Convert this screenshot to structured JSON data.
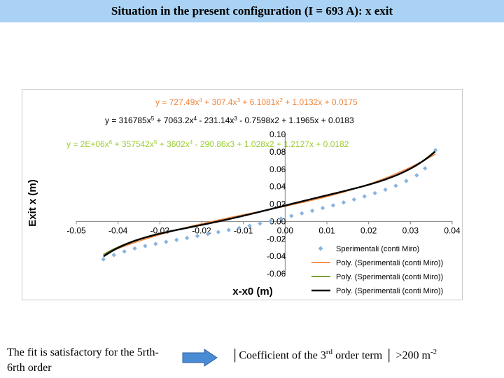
{
  "slide": {
    "title": "Situation in the present configuration (I = 693 A): x exit",
    "note_left": "The fit is satisfactory for the 5rth-6rth order",
    "note_right_pre": "│Coefficient of the 3",
    "note_right_sup": "rd",
    "note_right_mid": " order term │ >200 m",
    "note_right_sup2": "-2"
  },
  "chart_data": {
    "type": "scatter",
    "xlabel": "x-x0 (m)",
    "ylabel": "Exit x (m)",
    "xlim": [
      -0.05,
      0.04
    ],
    "ylim": [
      -0.06,
      0.1
    ],
    "xticks": [
      "-0.05",
      "-0.04",
      "-0.03",
      "-0.02",
      "-0.01",
      "0.00",
      "0.01",
      "0.02",
      "0.03",
      "0.04"
    ],
    "yticks": [
      "-0.06",
      "-0.04",
      "-0.02",
      "0.00",
      "0.02",
      "0.04",
      "0.06",
      "0.08",
      "0.10"
    ],
    "grid": false,
    "legend_position": "bottom-right",
    "equations": [
      {
        "prefix": "y = 727.49x",
        "sup1": "4",
        "mid1": " + 307.4x",
        "sup2": "3",
        "mid2": " + 6.1081x",
        "sup3": "2",
        "rest": " + 1.0132x + 0.0175",
        "color": "#f2863c"
      },
      {
        "prefix": "y = 316785x",
        "sup1": "5",
        "mid1": " + 7063.2x",
        "sup2": "4",
        "mid2": " - 231.14x",
        "sup3": "3",
        "rest": " - 0.7598x2 + 1.1965x + 0.0183",
        "color": "#000000"
      },
      {
        "prefix": "y = 2E+06x",
        "sup1": "6",
        "mid1": " + 357542x",
        "sup2": "5",
        "mid2": " + 3602x",
        "sup3": "4",
        "rest": " - 290.86x3 + 1.028x2 + 1.2127x + 0.0182",
        "color": "#9acd32"
      }
    ],
    "series": [
      {
        "name": "Sperimentali (conti Miro)",
        "kind": "points",
        "color": "#8ab4e0",
        "x": [
          -0.0435,
          -0.041,
          -0.0385,
          -0.036,
          -0.0335,
          -0.031,
          -0.0285,
          -0.026,
          -0.0235,
          -0.021,
          -0.0185,
          -0.016,
          -0.0135,
          -0.011,
          -0.0085,
          -0.006,
          -0.0035,
          -0.001,
          0.0015,
          0.004,
          0.0065,
          0.009,
          0.0115,
          0.014,
          0.0165,
          0.019,
          0.0215,
          0.024,
          0.0265,
          0.029,
          0.0315,
          0.0335,
          0.036
        ],
        "y": [
          -0.0435,
          -0.0385,
          -0.0345,
          -0.031,
          -0.0282,
          -0.0258,
          -0.0235,
          -0.0212,
          -0.019,
          -0.0167,
          -0.0145,
          -0.0122,
          -0.0098,
          -0.0075,
          -0.005,
          -0.0024,
          0.0003,
          0.0033,
          0.0063,
          0.0093,
          0.0123,
          0.0154,
          0.0185,
          0.0218,
          0.0252,
          0.0288,
          0.0325,
          0.0365,
          0.041,
          0.0465,
          0.053,
          0.061,
          0.082
        ]
      },
      {
        "name": "Poly. (Sperimentali (conti Miro))",
        "kind": "poly",
        "color": "#f2863c",
        "coef": [
          0.0175,
          1.0132,
          6.1081,
          307.4,
          727.49
        ]
      },
      {
        "name": "Poly. (Sperimentali (conti Miro))",
        "kind": "poly",
        "color": "#6b8e23",
        "coef": [
          0.0182,
          1.2127,
          1.028,
          -290.86,
          3602,
          357542,
          2000000
        ]
      },
      {
        "name": "Poly. (Sperimentali (conti Miro))",
        "kind": "poly",
        "color": "#000000",
        "coef": [
          0.0183,
          1.1965,
          -0.7598,
          -231.14,
          7063.2,
          316785
        ]
      }
    ]
  }
}
